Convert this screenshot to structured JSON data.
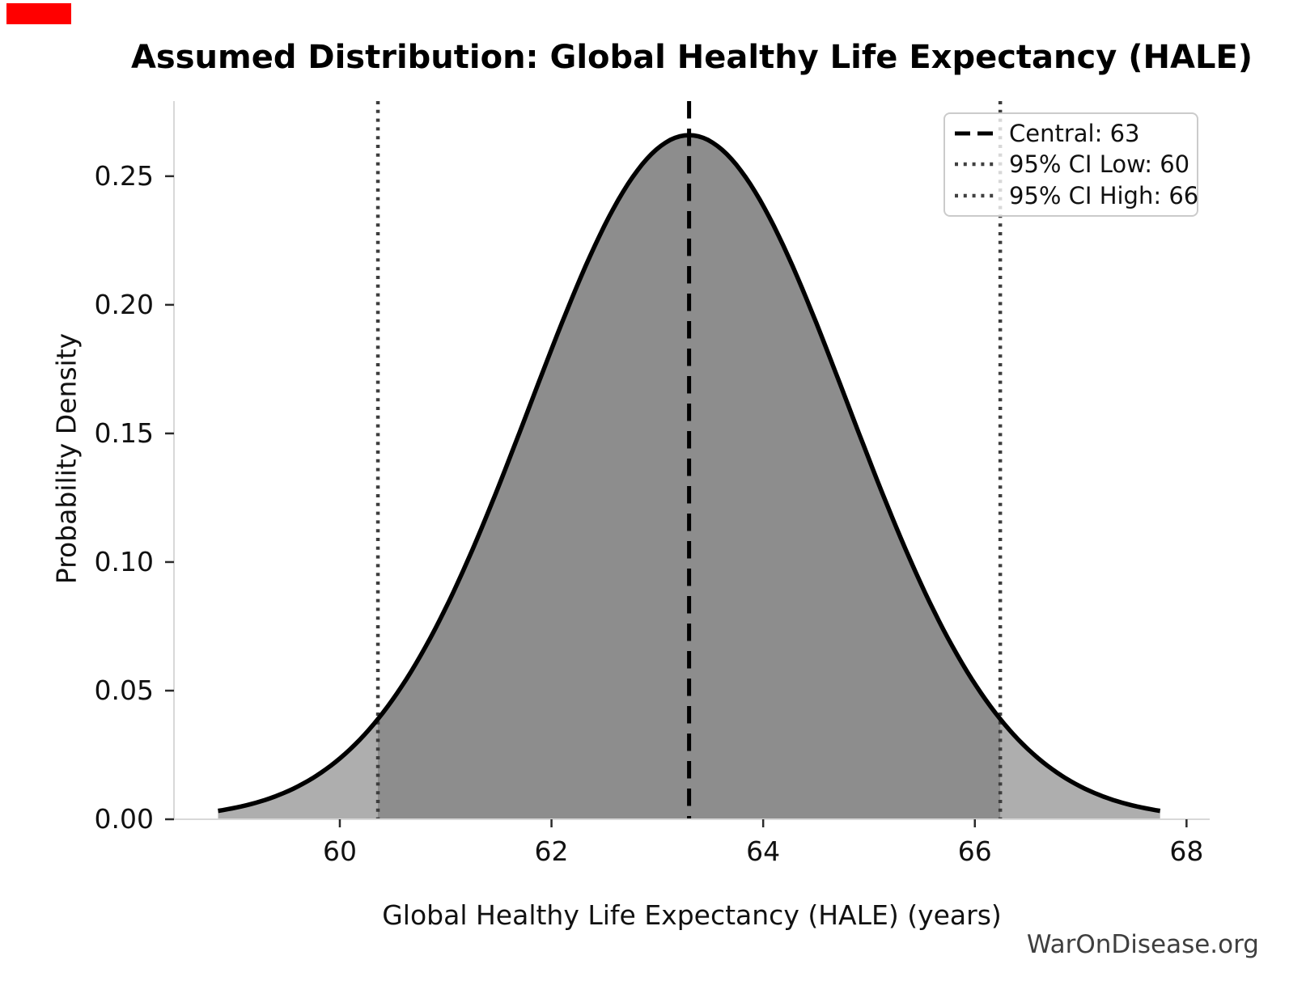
{
  "annotation_box": {
    "color": "#ff0000"
  },
  "watermark": "WarOnDisease.org",
  "chart_data": {
    "type": "area",
    "title": "Assumed Distribution: Global Healthy Life Expectancy (HALE)",
    "xlabel": "Global Healthy Life Expectancy (HALE) (years)",
    "ylabel": "Probability Density",
    "x_ticks": [
      "60",
      "62",
      "64",
      "66",
      "68"
    ],
    "x_tick_values": [
      60,
      62,
      64,
      66,
      68
    ],
    "y_ticks": [
      "0.00",
      "0.05",
      "0.10",
      "0.15",
      "0.20",
      "0.25"
    ],
    "y_tick_values": [
      0,
      0.05,
      0.1,
      0.15,
      0.2,
      0.25
    ],
    "axes": {
      "xlim": [
        58.433,
        68.219
      ],
      "ylim": [
        0,
        0.2792
      ],
      "grid": false
    },
    "distribution": {
      "kind": "normal",
      "mean": 63.3,
      "sd": 1.5,
      "x_start": 58.85,
      "x_end": 67.75,
      "peak_density": 0.266
    },
    "markers": {
      "central": {
        "x": 63.3,
        "style": "dashed",
        "label": "Central: 63"
      },
      "ci_low": {
        "x": 60.36,
        "style": "dotted",
        "label": "95% CI Low: 60"
      },
      "ci_high": {
        "x": 66.24,
        "style": "dotted",
        "label": "95% CI High: 66"
      }
    },
    "legend": {
      "position": "upper right",
      "entries": [
        {
          "label": "Central: 63",
          "line": "dashed",
          "color": "#000000"
        },
        {
          "label": "95% CI Low: 60",
          "line": "dotted",
          "color": "#404040"
        },
        {
          "label": "95% CI High: 66",
          "line": "dotted",
          "color": "#404040"
        }
      ]
    },
    "colors": {
      "curve": "#000000",
      "fill_central": "#8d8d8d",
      "fill_tail": "#aeaeae",
      "dashed_line": "#000000",
      "dotted_line": "#3d3d3d",
      "spine": "#d8d8d8",
      "tick": "#2b2b2b",
      "text": "#111111",
      "watermark": "#3f3f3f"
    }
  }
}
